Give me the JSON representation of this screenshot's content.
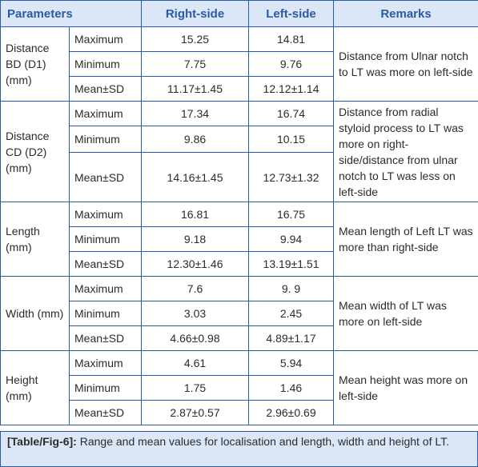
{
  "header": {
    "parameters": "Parameters",
    "right": "Right-side",
    "left": "Left-side",
    "remarks": "Remarks"
  },
  "groups": [
    {
      "label": "Distance BD (D1) (mm)",
      "rows": [
        {
          "stat": "Maximum",
          "right": "15.25",
          "left": "14.81"
        },
        {
          "stat": "Minimum",
          "right": "7.75",
          "left": "9.76"
        },
        {
          "stat": "Mean±SD",
          "right": "11.17±1.45",
          "left": "12.12±1.14"
        }
      ],
      "remarks": "Distance from Ulnar notch to LT was more on left-side"
    },
    {
      "label": "Distance CD (D2) (mm)",
      "rows": [
        {
          "stat": "Maximum",
          "right": "17.34",
          "left": "16.74"
        },
        {
          "stat": "Minimum",
          "right": "9.86",
          "left": "10.15"
        },
        {
          "stat": "Mean±SD",
          "right": "14.16±1.45",
          "left": "12.73±1.32"
        }
      ],
      "remarks": "Distance from radial styloid process to LT was more on right-side/distance from ulnar notch to LT was less on left-side"
    },
    {
      "label": "Length (mm)",
      "rows": [
        {
          "stat": "Maximum",
          "right": "16.81",
          "left": "16.75"
        },
        {
          "stat": "Minimum",
          "right": "9.18",
          "left": "9.94"
        },
        {
          "stat": "Mean±SD",
          "right": "12.30±1.46",
          "left": "13.19±1.51"
        }
      ],
      "remarks": "Mean length of Left LT was more than right-side"
    },
    {
      "label": "Width (mm)",
      "rows": [
        {
          "stat": "Maximum",
          "right": "7.6",
          "left": "9. 9"
        },
        {
          "stat": "Minimum",
          "right": "3.03",
          "left": "2.45"
        },
        {
          "stat": "Mean±SD",
          "right": "4.66±0.98",
          "left": "4.89±1.17"
        }
      ],
      "remarks": "Mean width of LT was more on left-side"
    },
    {
      "label": "Height (mm)",
      "rows": [
        {
          "stat": "Maximum",
          "right": "4.61",
          "left": "5.94"
        },
        {
          "stat": "Minimum",
          "right": "1.75",
          "left": "1.46"
        },
        {
          "stat": "Mean±SD",
          "right": "2.87±0.57",
          "left": "2.96±0.69"
        }
      ],
      "remarks": "Mean height was more on left-side"
    }
  ],
  "caption": {
    "tag": "[Table/Fig-6]:",
    "text": " Range and mean values for localisation and length, width and height of LT."
  },
  "colors": {
    "border": "#2a5aa8",
    "header_bg": "#dbe7f6",
    "header_text": "#2a5aa8"
  }
}
